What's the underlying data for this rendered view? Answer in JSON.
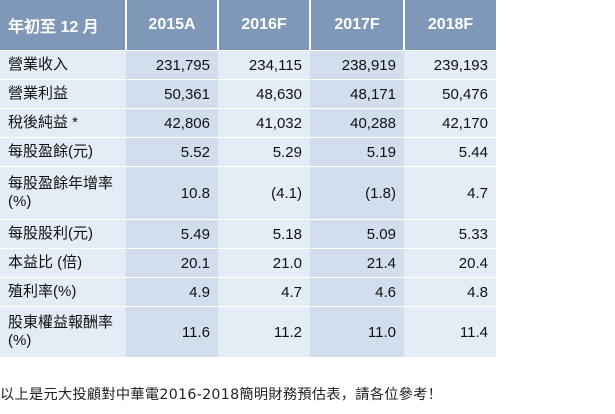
{
  "table": {
    "header": [
      "年初至 12 月",
      "2015A",
      "2016F",
      "2017F",
      "2018F"
    ],
    "rows": [
      {
        "label": "營業收入",
        "values": [
          "231,795",
          "234,115",
          "238,919",
          "239,193"
        ]
      },
      {
        "label": "營業利益",
        "values": [
          "50,361",
          "48,630",
          "48,171",
          "50,476"
        ]
      },
      {
        "label": "稅後純益 *",
        "values": [
          "42,806",
          "41,032",
          "40,288",
          "42,170"
        ]
      },
      {
        "label": "每股盈餘(元)",
        "values": [
          "5.52",
          "5.29",
          "5.19",
          "5.44"
        ]
      },
      {
        "label": "每股盈餘年增率 (%)",
        "values": [
          "10.8",
          "(4.1)",
          "(1.8)",
          "4.7"
        ]
      },
      {
        "label": "每股股利(元)",
        "values": [
          "5.49",
          "5.18",
          "5.09",
          "5.33"
        ]
      },
      {
        "label": "本益比 (倍)",
        "values": [
          "20.1",
          "21.0",
          "21.4",
          "20.4"
        ]
      },
      {
        "label": "殖利率(%)",
        "values": [
          "4.9",
          "4.7",
          "4.6",
          "4.8"
        ]
      },
      {
        "label": "股東權益報酬率 (%)",
        "values": [
          "11.6",
          "11.2",
          "11.0",
          "11.4"
        ]
      }
    ]
  },
  "caption": "以上是元大投顧對中華電2016-2018簡明財務預估表，請各位參考！"
}
